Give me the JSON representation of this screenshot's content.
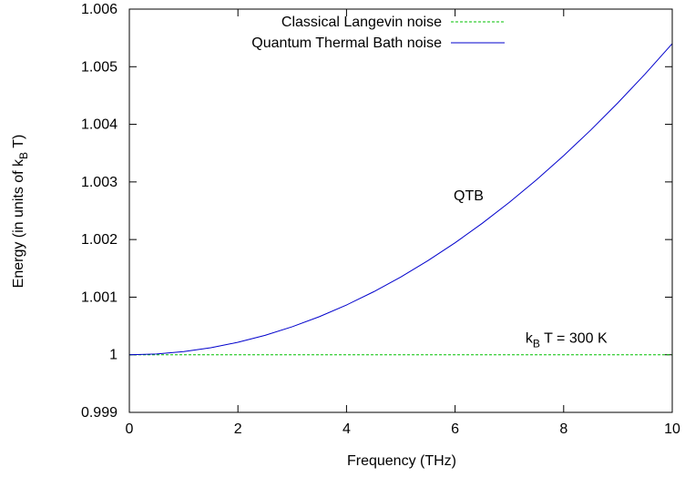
{
  "chart_data": {
    "type": "line",
    "xlabel": "Frequency (THz)",
    "ylabel": {
      "prefix": "Energy (in units of k",
      "sub": "B",
      "suffix": " T)"
    },
    "xlim": [
      0,
      10
    ],
    "ylim": [
      0.999,
      1.006
    ],
    "xticks": [
      0,
      2,
      4,
      6,
      8,
      10
    ],
    "xtick_labels": [
      "0",
      "2",
      "4",
      "6",
      "8",
      "10"
    ],
    "yticks": [
      0.999,
      1.0,
      1.001,
      1.002,
      1.003,
      1.004,
      1.005,
      1.006
    ],
    "ytick_labels": [
      "0.999",
      "1",
      "1.001",
      "1.002",
      "1.003",
      "1.004",
      "1.005",
      "1.006"
    ],
    "grid": false,
    "legend_position": "top-right",
    "series": [
      {
        "name": "Classical Langevin noise",
        "color": "#00c000",
        "dash": true,
        "x": [
          0,
          10
        ],
        "y": [
          1.0,
          1.0
        ]
      },
      {
        "name": "Quantum Thermal Bath noise",
        "color": "#0000cc",
        "dash": false,
        "x": [
          0,
          0.5,
          1,
          1.5,
          2,
          2.5,
          3,
          3.5,
          4,
          4.5,
          5,
          5.5,
          6,
          6.5,
          7,
          7.5,
          8,
          8.5,
          9,
          9.5,
          10
        ],
        "y": [
          1.0,
          1.0000135,
          1.000054,
          1.0001215,
          1.000216,
          1.0003375,
          1.000486,
          1.0006615,
          1.000864,
          1.0010935,
          1.00135,
          1.0016335,
          1.001944,
          1.0022815,
          1.002646,
          1.0030375,
          1.003456,
          1.0039015,
          1.004374,
          1.0048735,
          1.0054
        ]
      }
    ],
    "annotations": [
      {
        "id": "qtb",
        "text": "QTB",
        "color": "#0000cc",
        "x": 6.25,
        "y": 1.00276
      },
      {
        "id": "temp",
        "prefix": "k",
        "sub": "B",
        "suffix": " T = 300 K",
        "color": "#000000",
        "x": 8.05,
        "y": 1.00029
      }
    ]
  }
}
